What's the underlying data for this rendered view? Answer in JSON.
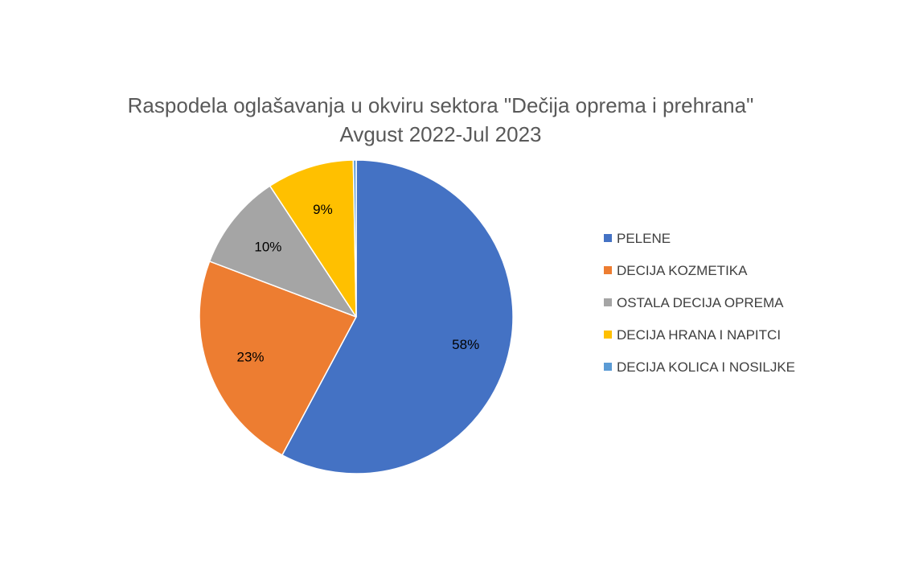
{
  "chart_data": {
    "type": "pie",
    "title": "Raspodela oglašavanja u okviru sektora \"Dečija oprema i prehrana\"",
    "subtitle": "Avgust 2022-Jul 2023",
    "categories": [
      "PELENE",
      "DECIJA KOZMETIKA",
      "OSTALA DECIJA OPREMA",
      "DECIJA HRANA I NAPITCI",
      "DECIJA KOLICA I NOSILJKE"
    ],
    "values": [
      58,
      23,
      10,
      9,
      0.3
    ],
    "data_labels": [
      "58%",
      "23%",
      "10%",
      "9%",
      ""
    ],
    "colors": [
      "#4472C4",
      "#ED7D31",
      "#A5A5A5",
      "#FFC000",
      "#5B9BD5"
    ],
    "legend": "right",
    "start_angle": "12 o'clock, clockwise"
  }
}
